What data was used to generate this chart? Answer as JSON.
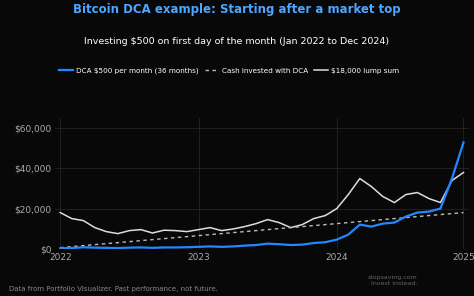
{
  "title": "Bitcoin DCA example: Starting after a market top",
  "subtitle": "Investing $500 on first day of the month (Jan 2022 to Dec 2024)",
  "bg_color": "#080808",
  "title_color": "#4da6ff",
  "subtitle_color": "#ffffff",
  "legend_labels": [
    "DCA $500 per month (36 months)",
    "Cash invested with DCA",
    "$18,000 lump sum"
  ],
  "dca_color": "#2288ff",
  "cash_color": "#bbbbbb",
  "lump_color": "#dddddd",
  "footnote": "Data from Portfolio Visualizer. Past performance, not future.",
  "ylim": [
    0,
    65000
  ],
  "yticks": [
    0,
    20000,
    40000,
    60000
  ],
  "dca_values": [
    200,
    300,
    700,
    500,
    400,
    300,
    500,
    600,
    400,
    600,
    600,
    700,
    900,
    1100,
    900,
    1100,
    1500,
    1800,
    2500,
    2200,
    1800,
    2000,
    2800,
    3200,
    4500,
    7000,
    12000,
    11000,
    12500,
    13000,
    16000,
    18000,
    18500,
    20000,
    35000,
    53000
  ],
  "cash_values": [
    500,
    1000,
    1500,
    2000,
    2500,
    3000,
    3500,
    4000,
    4500,
    5000,
    5500,
    6000,
    6500,
    7000,
    7500,
    8000,
    8500,
    9000,
    9500,
    10000,
    10500,
    11000,
    11500,
    12000,
    12500,
    13000,
    13500,
    14000,
    14500,
    15000,
    15500,
    16000,
    16500,
    17000,
    17500,
    18000
  ],
  "lump_values": [
    18000,
    15000,
    14000,
    10500,
    8500,
    7500,
    9000,
    9500,
    7800,
    9200,
    9000,
    8500,
    9500,
    10500,
    9000,
    9800,
    11000,
    12500,
    14500,
    13000,
    10500,
    12000,
    15000,
    16500,
    20000,
    27000,
    35000,
    31000,
    26000,
    23000,
    27000,
    28000,
    25000,
    23000,
    34000,
    38000
  ],
  "xtick_positions": [
    0,
    12,
    24,
    35
  ],
  "xtick_labels": [
    "2022",
    "2023",
    "2024",
    "2025"
  ],
  "grid_color": "#2a2a2a",
  "tick_color": "#aaaaaa"
}
